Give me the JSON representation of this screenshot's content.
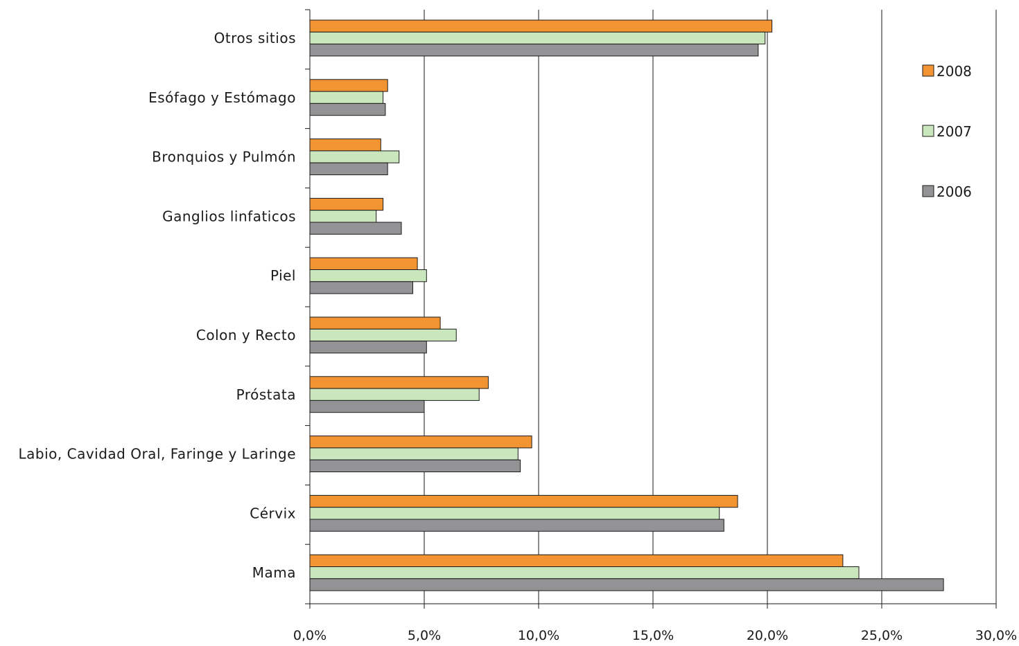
{
  "chart_data": {
    "type": "bar",
    "orientation": "horizontal",
    "categories": [
      "Otros sitios",
      "Esófago y Estómago",
      "Bronquios y Pulmón",
      "Ganglios linfaticos",
      "Piel",
      "Colon y Recto",
      "Próstata",
      "Labio, Cavidad Oral, Faringe y Laringe",
      "Cérvix",
      "Mama"
    ],
    "series": [
      {
        "name": "2008",
        "color": "#f39433",
        "values": [
          20.2,
          3.4,
          3.1,
          3.2,
          4.7,
          5.7,
          7.8,
          9.7,
          18.7,
          23.3
        ]
      },
      {
        "name": "2007",
        "color": "#c9e6bd",
        "values": [
          19.9,
          3.2,
          3.9,
          2.9,
          5.1,
          6.4,
          7.4,
          9.1,
          17.9,
          24.0
        ]
      },
      {
        "name": "2006",
        "color": "#939396",
        "values": [
          19.6,
          3.3,
          3.4,
          4.0,
          4.5,
          5.1,
          5.0,
          9.2,
          18.1,
          27.7
        ]
      }
    ],
    "xlim": [
      0,
      30
    ],
    "xticks": [
      "0,0%",
      "5,0%",
      "10,0%",
      "15,0%",
      "20,0%",
      "25,0%",
      "30,0%"
    ],
    "grid": true,
    "legend": "right",
    "title": "",
    "xlabel": "",
    "ylabel": ""
  }
}
